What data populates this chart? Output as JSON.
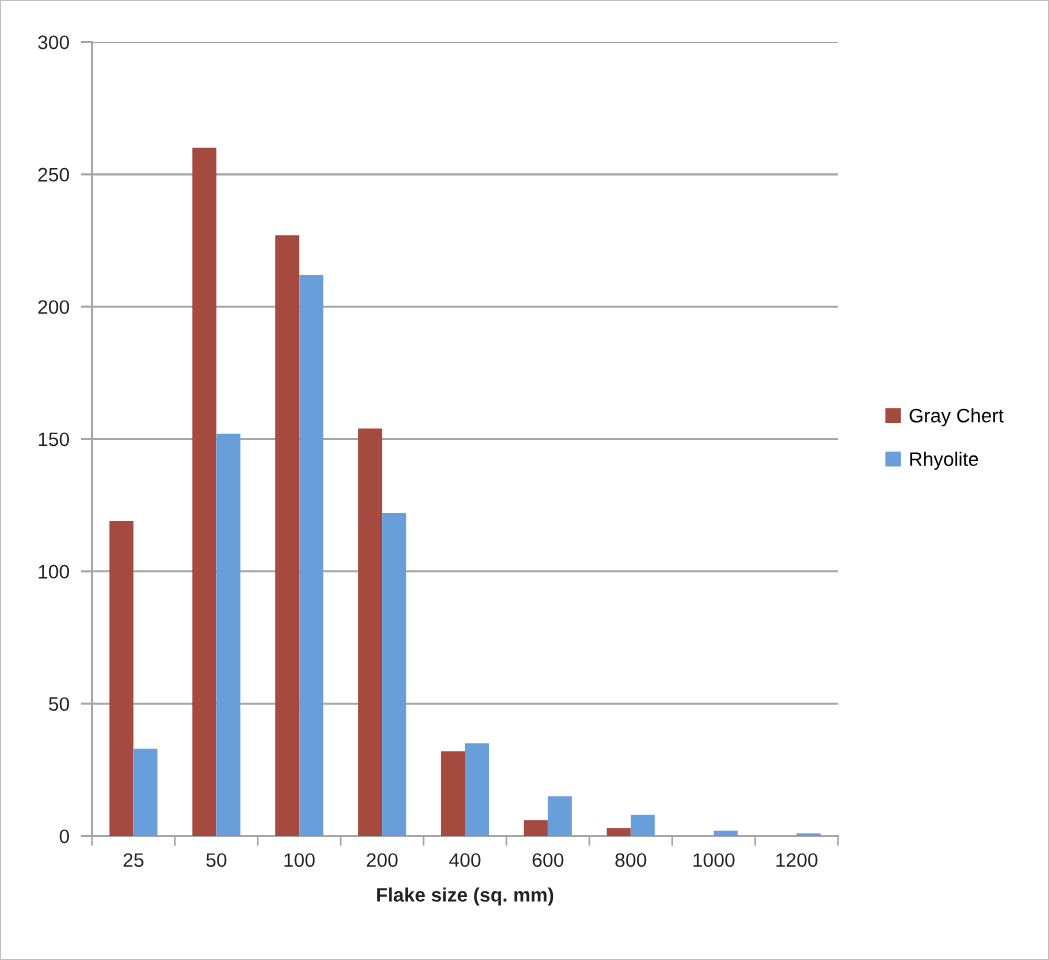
{
  "chart_data": {
    "type": "bar",
    "xlabel": "Flake size (sq. mm)",
    "categories": [
      "25",
      "50",
      "100",
      "200",
      "400",
      "600",
      "800",
      "1000",
      "1200"
    ],
    "series": [
      {
        "name": "Gray Chert",
        "color": "#a44a3f",
        "values": [
          119,
          260,
          227,
          154,
          32,
          6,
          3,
          0,
          0
        ]
      },
      {
        "name": "Rhyolite",
        "color": "#689fdb",
        "values": [
          33,
          152,
          212,
          122,
          35,
          15,
          8,
          2,
          1
        ]
      }
    ],
    "ylim": [
      0,
      300
    ],
    "yticks": [
      0,
      50,
      100,
      150,
      200,
      250,
      300
    ],
    "grid": "y",
    "legend": "right"
  }
}
